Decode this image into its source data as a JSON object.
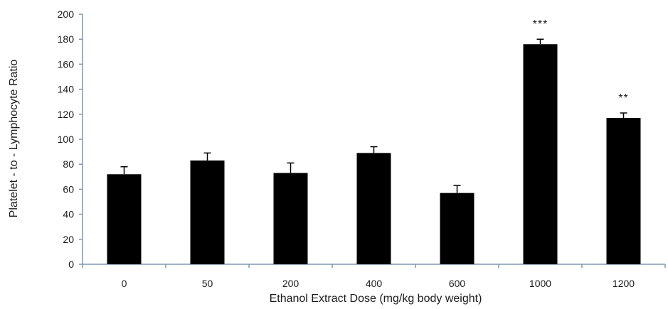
{
  "chart_data": {
    "type": "bar",
    "title": "",
    "xlabel": "Ethanol Extract Dose (mg/kg body weight)",
    "ylabel": "Platelet - to - Lymphocyte Ratio",
    "categories": [
      "0",
      "50",
      "200",
      "400",
      "600",
      "1000",
      "1200"
    ],
    "values": [
      72,
      83,
      73,
      89,
      57,
      176,
      117
    ],
    "errors": [
      6,
      6,
      8,
      5,
      6,
      4,
      4
    ],
    "annotations": [
      "",
      "",
      "",
      "",
      "",
      "***",
      "**"
    ],
    "ylim": [
      0,
      200
    ],
    "ytick_step": 20,
    "yticks": [
      "0",
      "20",
      "40",
      "60",
      "80",
      "100",
      "120",
      "140",
      "160",
      "180",
      "200"
    ],
    "bar_color": "#000000",
    "axis_color": "#7f97b4",
    "grid": false,
    "legend": "none"
  }
}
